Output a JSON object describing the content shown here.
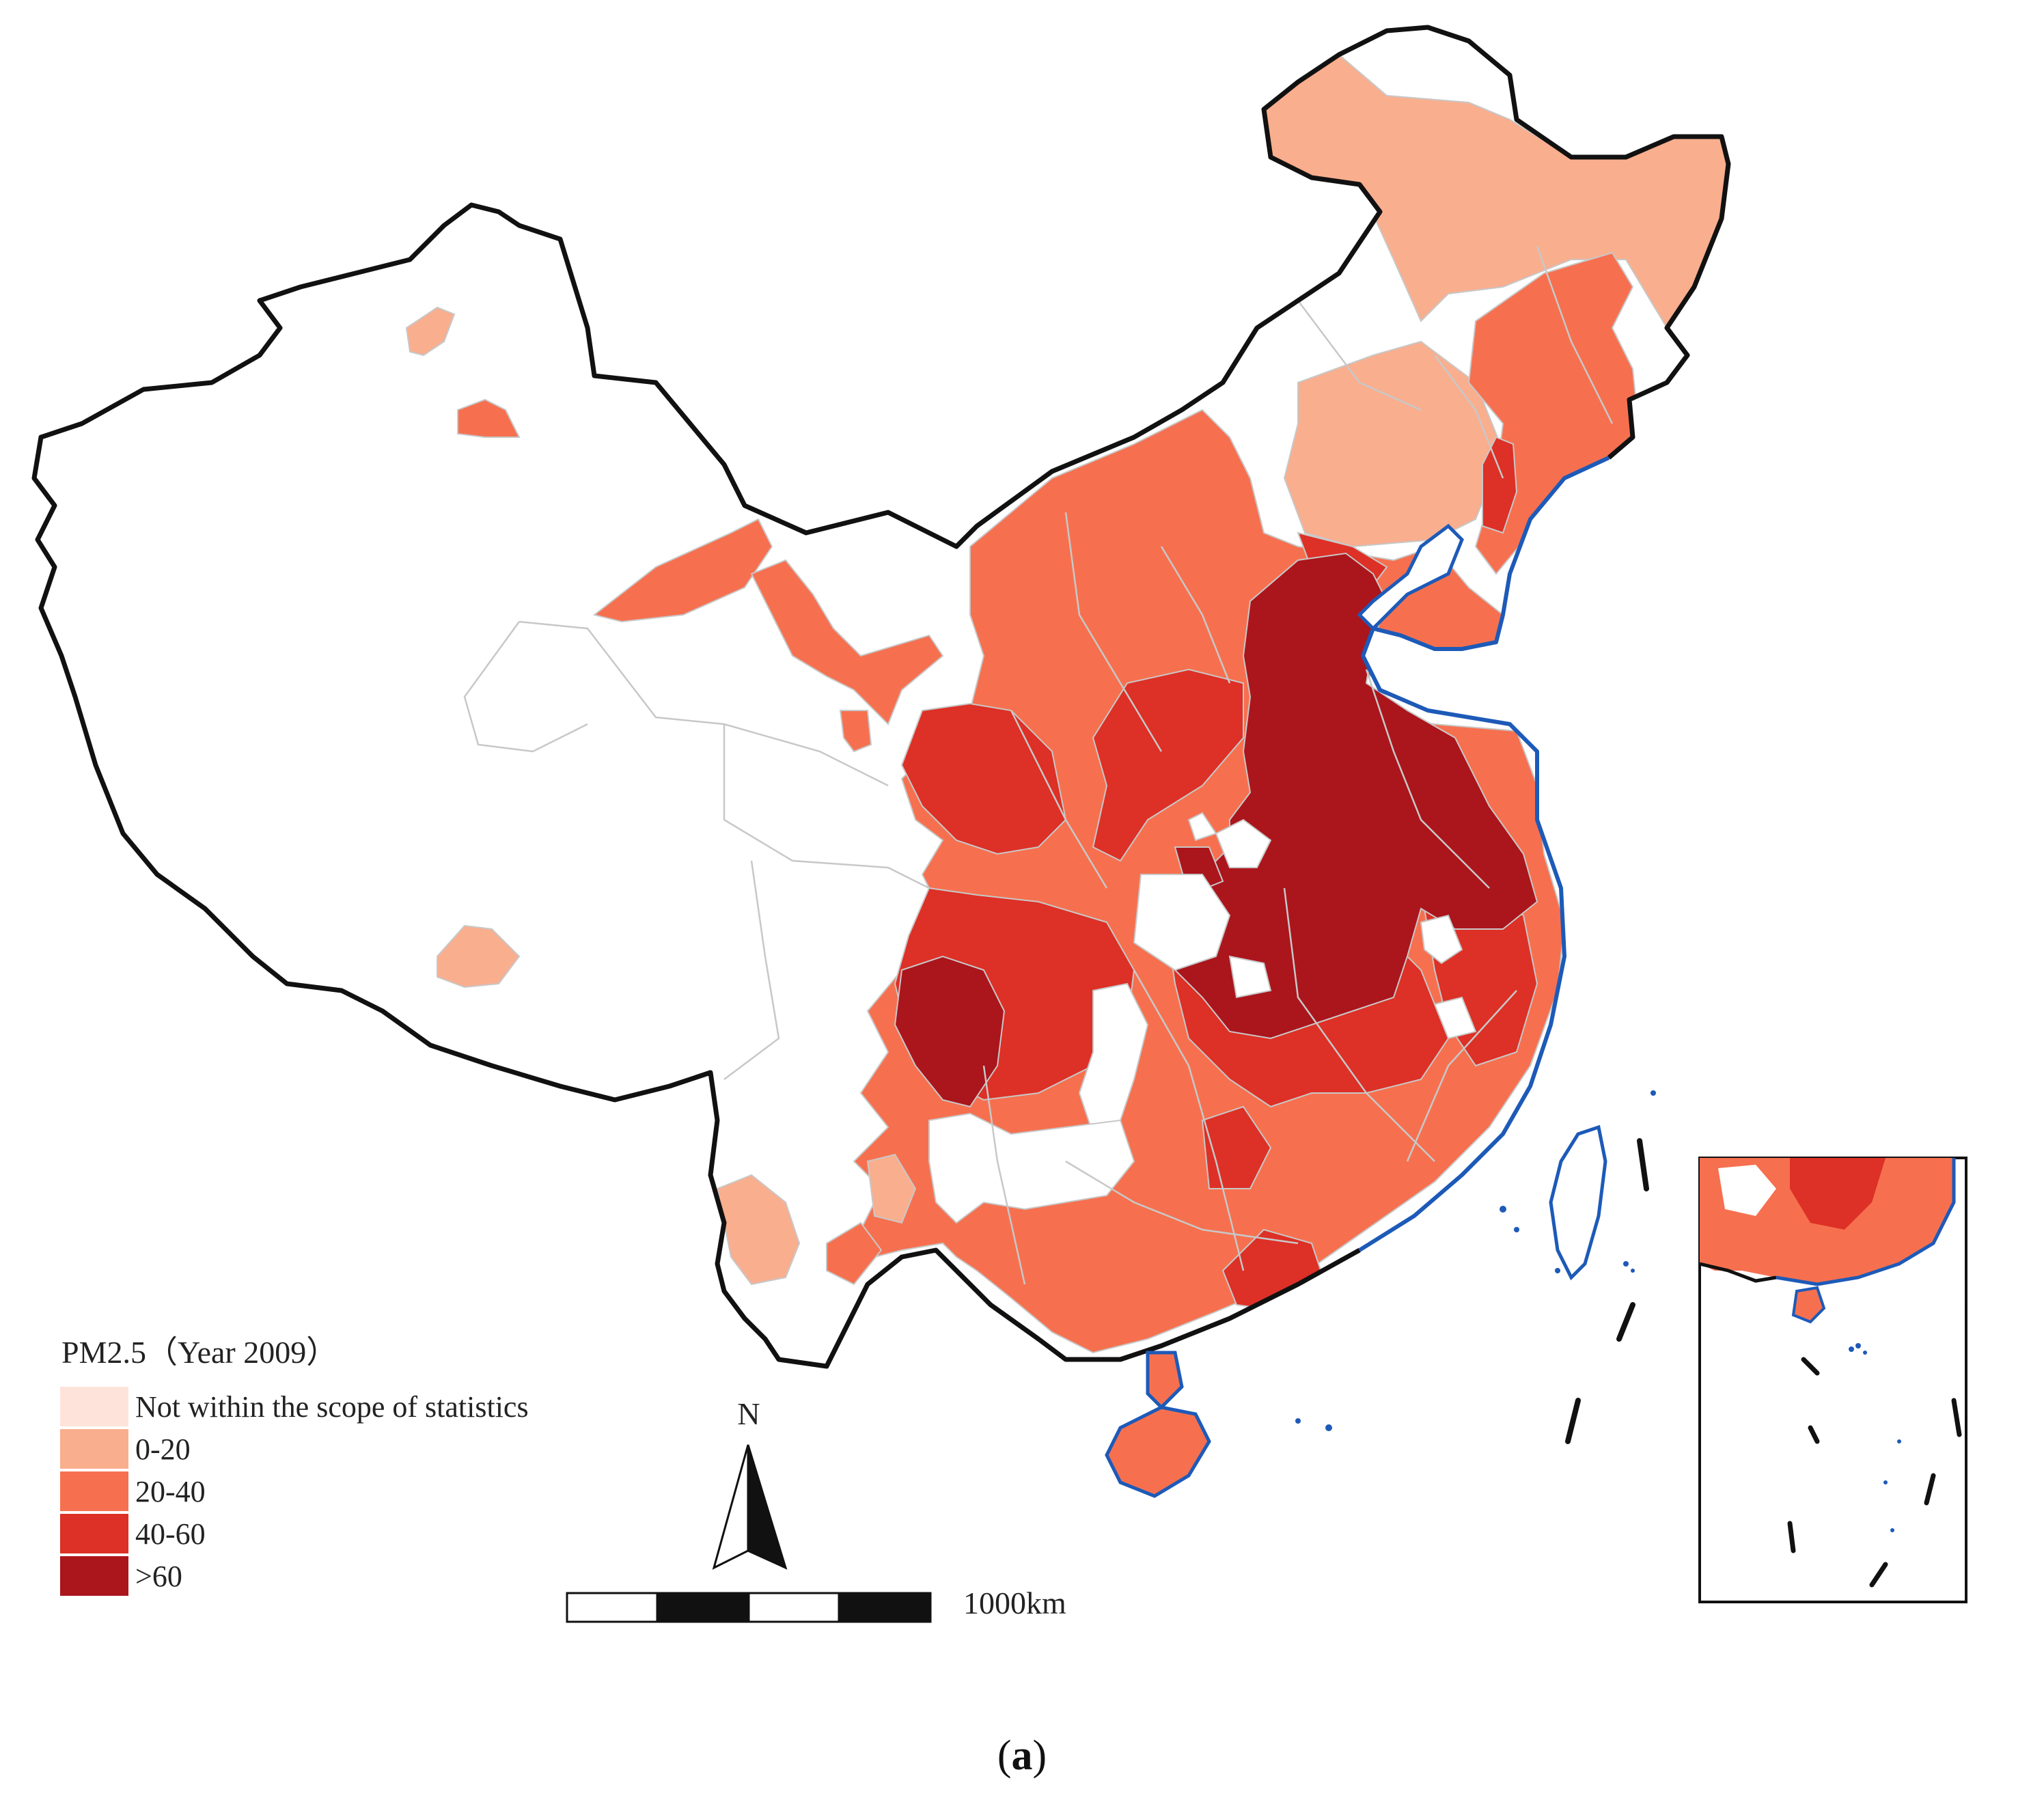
{
  "legend": {
    "title": "PM2.5（Year 2009）",
    "classes": [
      {
        "label": "Not within the scope of statistics",
        "color": "#fde3d9"
      },
      {
        "label": "0-20",
        "color": "#f9ae8e"
      },
      {
        "label": "20-40",
        "color": "#f6704f"
      },
      {
        "label": "40-60",
        "color": "#dd3026"
      },
      {
        "label": ">60",
        "color": "#ab151c"
      }
    ]
  },
  "north_arrow": {
    "label": "N"
  },
  "scale_bar": {
    "label": "1000km"
  },
  "caption": {
    "open": "(",
    "letter": "a",
    "close": ")"
  },
  "colors": {
    "border": "#111111",
    "coast": "#1d5ab8",
    "province_line": "#c8c8c8"
  }
}
